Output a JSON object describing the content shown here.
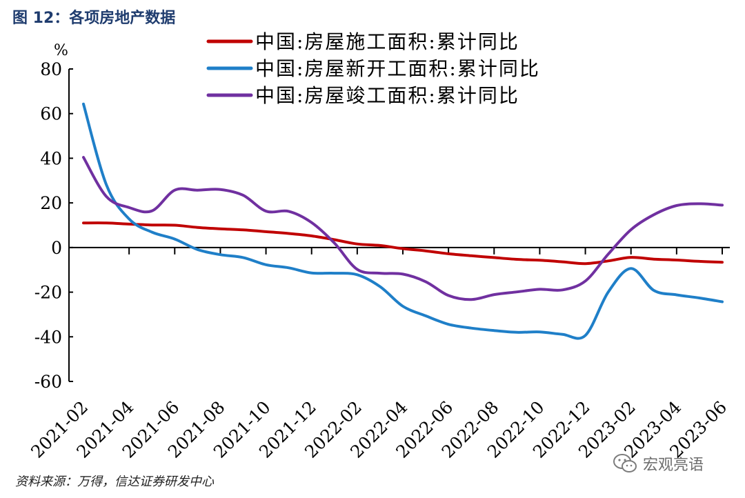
{
  "figure": {
    "title": "图 12：各项房地产数据",
    "source": "资料来源：万得，信达证券研发中心",
    "watermark": "宏观亮语",
    "watermark_icon": "wechat-icon"
  },
  "chart_data": {
    "type": "line",
    "title": "图 12：各项房地产数据",
    "ylabel": "%",
    "xlabel": "",
    "ylim": [
      -60,
      80
    ],
    "yticks": [
      80,
      60,
      40,
      20,
      0,
      -20,
      -40,
      -60
    ],
    "x": [
      "2021-02",
      "2021-03",
      "2021-04",
      "2021-05",
      "2021-06",
      "2021-07",
      "2021-08",
      "2021-09",
      "2021-10",
      "2021-11",
      "2021-12",
      "2022-01",
      "2022-02",
      "2022-03",
      "2022-04",
      "2022-05",
      "2022-06",
      "2022-07",
      "2022-08",
      "2022-09",
      "2022-10",
      "2022-11",
      "2022-12",
      "2023-01",
      "2023-02",
      "2023-03",
      "2023-04",
      "2023-05",
      "2023-06"
    ],
    "xticks": [
      "2021-02",
      "2021-04",
      "2021-06",
      "2021-08",
      "2021-10",
      "2021-12",
      "2022-02",
      "2022-04",
      "2022-06",
      "2022-08",
      "2022-10",
      "2022-12",
      "2023-02",
      "2023-04",
      "2023-06"
    ],
    "grid": false,
    "legend_position": "top",
    "series": [
      {
        "name": "中国:房屋施工面积:累计同比",
        "color": "#c00000",
        "values": [
          11.0,
          11.0,
          10.5,
          10.1,
          10.0,
          9.0,
          8.4,
          7.9,
          7.1,
          6.3,
          5.2,
          3.5,
          1.6,
          0.9,
          -0.5,
          -1.5,
          -2.8,
          -3.7,
          -4.5,
          -5.3,
          -5.7,
          -6.4,
          -7.2,
          -6.0,
          -4.4,
          -5.2,
          -5.6,
          -6.2,
          -6.6
        ]
      },
      {
        "name": "中国:房屋新开工面积:累计同比",
        "color": "#1f7fc8",
        "values": [
          64.3,
          28.2,
          12.8,
          6.9,
          3.8,
          -0.9,
          -3.2,
          -4.5,
          -7.7,
          -9.1,
          -11.4,
          -11.5,
          -12.2,
          -17.5,
          -26.3,
          -30.6,
          -34.4,
          -36.1,
          -37.2,
          -38.0,
          -37.8,
          -38.9,
          -39.4,
          -20.0,
          -9.4,
          -19.2,
          -21.2,
          -22.6,
          -24.3
        ]
      },
      {
        "name": "中国:房屋竣工面积:累计同比",
        "color": "#7030a0",
        "values": [
          40.4,
          22.9,
          17.9,
          16.4,
          25.7,
          25.7,
          26.0,
          23.4,
          16.3,
          16.2,
          11.2,
          2.0,
          -9.8,
          -11.5,
          -11.9,
          -15.3,
          -21.5,
          -23.3,
          -21.1,
          -19.9,
          -18.7,
          -19.0,
          -15.0,
          -3.0,
          8.0,
          14.7,
          18.8,
          19.6,
          19.0
        ]
      }
    ]
  }
}
